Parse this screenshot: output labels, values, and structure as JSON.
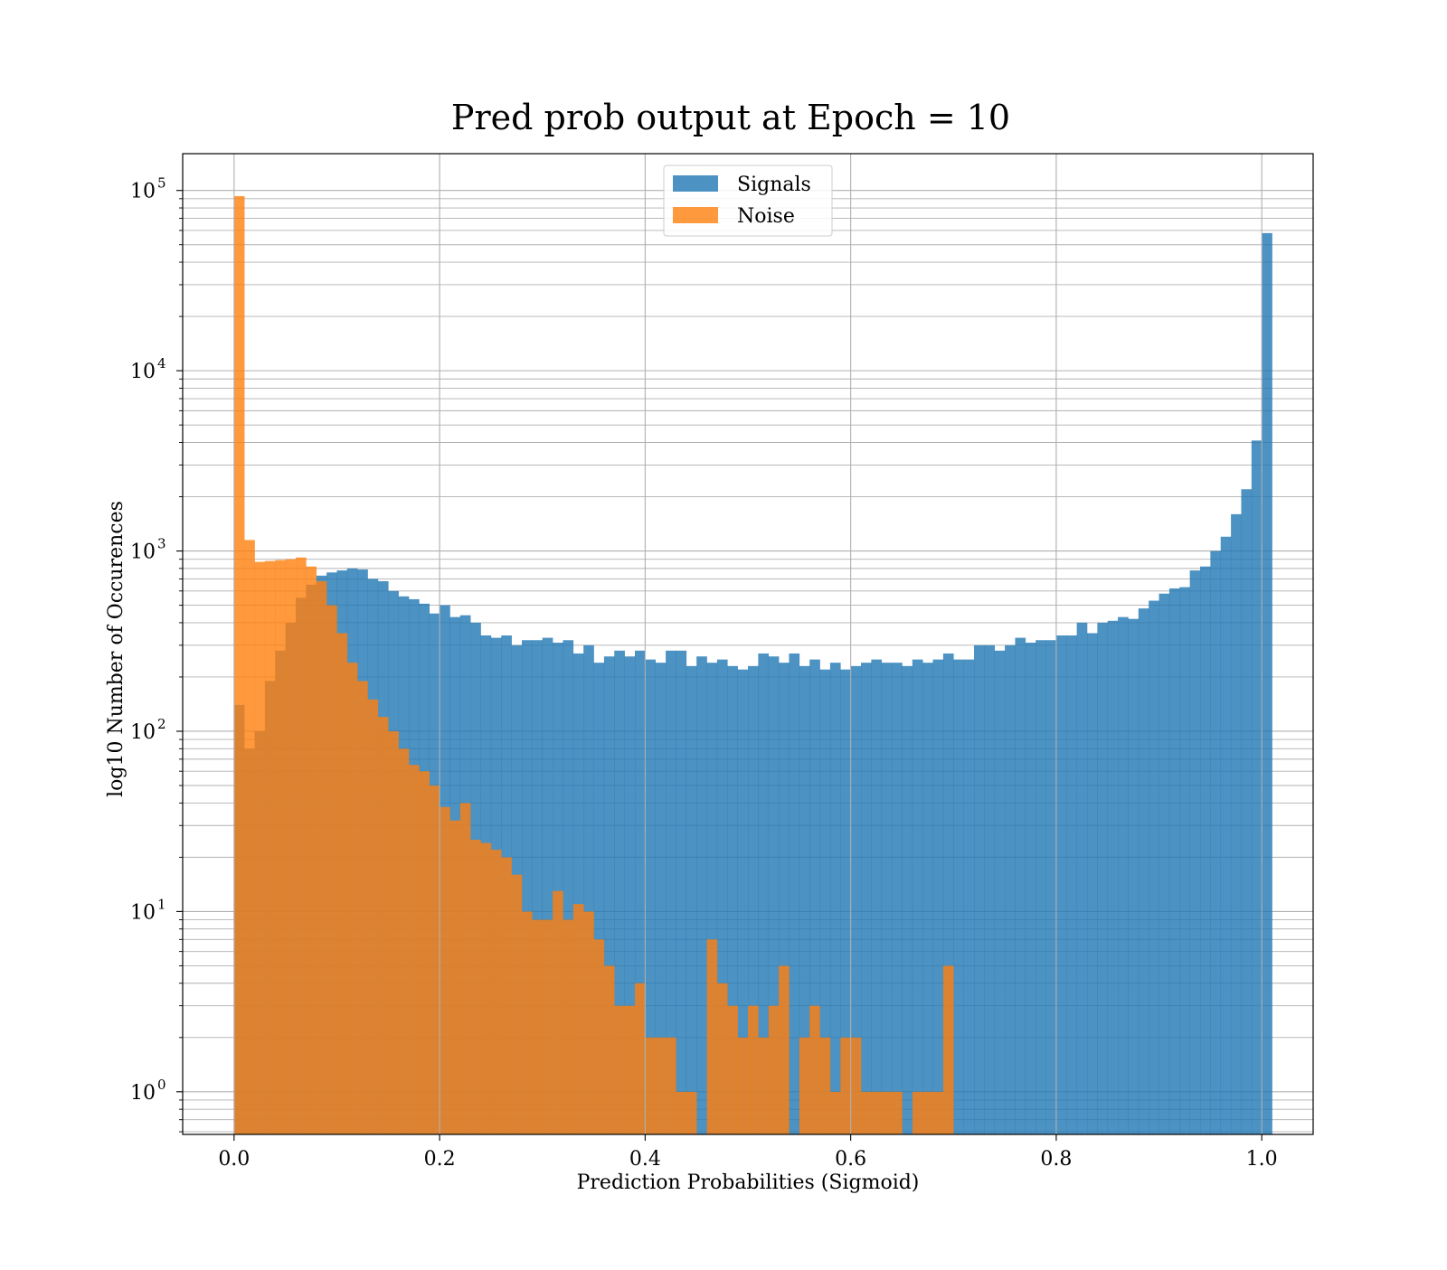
{
  "chart_data": {
    "type": "bar",
    "title": "Pred prob output at Epoch = 10",
    "xlabel": "Prediction Probabilities (Sigmoid)",
    "ylabel": "log10 Number of Occurences",
    "xlim": [
      -0.05,
      1.05
    ],
    "ylim": [
      0.58,
      160000
    ],
    "yscale": "log",
    "grid": true,
    "legend_position": "upper center",
    "bin_width": 0.01,
    "bin_start": 0.0,
    "x_ticks": [
      {
        "value": 0.0,
        "label": "0.0"
      },
      {
        "value": 0.2,
        "label": "0.2"
      },
      {
        "value": 0.4,
        "label": "0.4"
      },
      {
        "value": 0.6,
        "label": "0.6"
      },
      {
        "value": 0.8,
        "label": "0.8"
      },
      {
        "value": 1.0,
        "label": "1.0"
      }
    ],
    "y_ticks": [
      {
        "value": 1,
        "base": "10",
        "exp": "0"
      },
      {
        "value": 10,
        "base": "10",
        "exp": "1"
      },
      {
        "value": 100,
        "base": "10",
        "exp": "2"
      },
      {
        "value": 1000,
        "base": "10",
        "exp": "3"
      },
      {
        "value": 10000,
        "base": "10",
        "exp": "4"
      },
      {
        "value": 100000,
        "base": "10",
        "exp": "5"
      }
    ],
    "series": [
      {
        "name": "Signals",
        "color": "#1f77b4",
        "opacity": 0.8,
        "values": [
          140,
          80,
          100,
          190,
          280,
          400,
          550,
          650,
          730,
          760,
          780,
          800,
          790,
          700,
          680,
          600,
          560,
          540,
          510,
          450,
          500,
          430,
          440,
          400,
          340,
          330,
          340,
          300,
          320,
          320,
          330,
          310,
          320,
          270,
          300,
          240,
          260,
          280,
          260,
          280,
          250,
          240,
          280,
          280,
          230,
          260,
          240,
          250,
          230,
          220,
          230,
          270,
          260,
          240,
          270,
          230,
          250,
          220,
          240,
          220,
          230,
          240,
          250,
          240,
          240,
          230,
          250,
          240,
          250,
          270,
          250,
          250,
          300,
          300,
          280,
          300,
          330,
          310,
          320,
          320,
          340,
          340,
          400,
          350,
          400,
          410,
          430,
          420,
          480,
          530,
          580,
          620,
          630,
          780,
          820,
          1000,
          1200,
          1600,
          2200,
          4100,
          58000
        ]
      },
      {
        "name": "Noise",
        "color": "#ff7f0e",
        "opacity": 0.8,
        "values": [
          93000,
          1150,
          870,
          880,
          890,
          900,
          920,
          820,
          680,
          500,
          350,
          240,
          190,
          150,
          120,
          100,
          80,
          65,
          60,
          50,
          38,
          32,
          40,
          25,
          24,
          22,
          20,
          16,
          10,
          9,
          9,
          13,
          9,
          11,
          10,
          7,
          5,
          3,
          3,
          4,
          2,
          2,
          2,
          1,
          1,
          0,
          7,
          4,
          3,
          2,
          3,
          2,
          3,
          5,
          0,
          2,
          3,
          2,
          1,
          2,
          2,
          1,
          1,
          1,
          1,
          0,
          1,
          1,
          1,
          5,
          0,
          0,
          0,
          0,
          0,
          0,
          0,
          0,
          0,
          0,
          0,
          0,
          0,
          0,
          0,
          0,
          0,
          0,
          0,
          0,
          0,
          0,
          0,
          0,
          0,
          0,
          0,
          0,
          0,
          0,
          0
        ]
      }
    ]
  }
}
